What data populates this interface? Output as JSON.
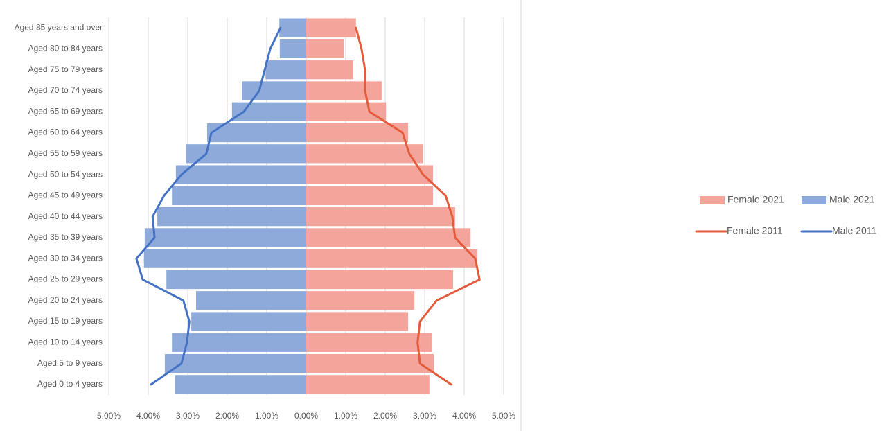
{
  "chart_data": {
    "type": "pyramid",
    "categories": [
      "Aged 85 years and over",
      "Aged 80 to 84 years",
      "Aged 75 to 79 years",
      "Aged 70 to 74 years",
      "Aged 65 to 69 years",
      "Aged 60 to 64 years",
      "Aged 55 to 59 years",
      "Aged 50 to 54 years",
      "Aged 45 to 49 years",
      "Aged 40 to 44 years",
      "Aged 35 to 39 years",
      "Aged 30 to 34 years",
      "Aged 25 to 29 years",
      "Aged 20 to 24 years",
      "Aged 15 to 19 years",
      "Aged 10 to 14 years",
      "Aged 5 to 9 years",
      "Aged 0 to 4 years"
    ],
    "series": [
      {
        "name": "Female 2021",
        "kind": "bar",
        "side": "right",
        "color": "#f4a59b",
        "values": [
          1.26,
          0.95,
          1.19,
          1.91,
          2.02,
          2.58,
          2.96,
          3.21,
          3.21,
          3.77,
          4.16,
          4.33,
          3.72,
          2.74,
          2.58,
          3.19,
          3.23,
          3.12
        ]
      },
      {
        "name": "Male 2021",
        "kind": "bar",
        "side": "left",
        "color": "#8eaadb",
        "values": [
          0.68,
          0.67,
          1.03,
          1.63,
          1.88,
          2.51,
          3.04,
          3.3,
          3.4,
          3.77,
          4.09,
          4.11,
          3.54,
          2.79,
          2.91,
          3.4,
          3.58,
          3.32
        ]
      },
      {
        "name": "Female 2011",
        "kind": "line",
        "side": "right",
        "color": "#e35b3b",
        "values": [
          1.26,
          1.4,
          1.49,
          1.49,
          1.6,
          2.44,
          2.61,
          2.96,
          3.53,
          3.7,
          3.77,
          4.28,
          4.39,
          3.3,
          2.88,
          2.82,
          2.88,
          3.67
        ]
      },
      {
        "name": "Male 2011",
        "kind": "line",
        "side": "left",
        "color": "#4472c4",
        "values": [
          0.65,
          0.91,
          1.05,
          1.19,
          1.58,
          2.4,
          2.53,
          3.16,
          3.6,
          3.89,
          3.84,
          4.3,
          4.14,
          3.11,
          2.96,
          3.02,
          3.16,
          3.93
        ]
      }
    ],
    "xlim": [
      -5,
      5
    ],
    "xticks": [
      {
        "value": -5,
        "label": "5.00%"
      },
      {
        "value": -4,
        "label": "4.00%"
      },
      {
        "value": -3,
        "label": "3.00%"
      },
      {
        "value": -2,
        "label": "2.00%"
      },
      {
        "value": -1,
        "label": "1.00%"
      },
      {
        "value": 0,
        "label": "0.00%"
      },
      {
        "value": 1,
        "label": "1.00%"
      },
      {
        "value": 2,
        "label": "2.00%"
      },
      {
        "value": 3,
        "label": "3.00%"
      },
      {
        "value": 4,
        "label": "4.00%"
      },
      {
        "value": 5,
        "label": "5.00%"
      }
    ],
    "grid": true,
    "legend": "right"
  }
}
